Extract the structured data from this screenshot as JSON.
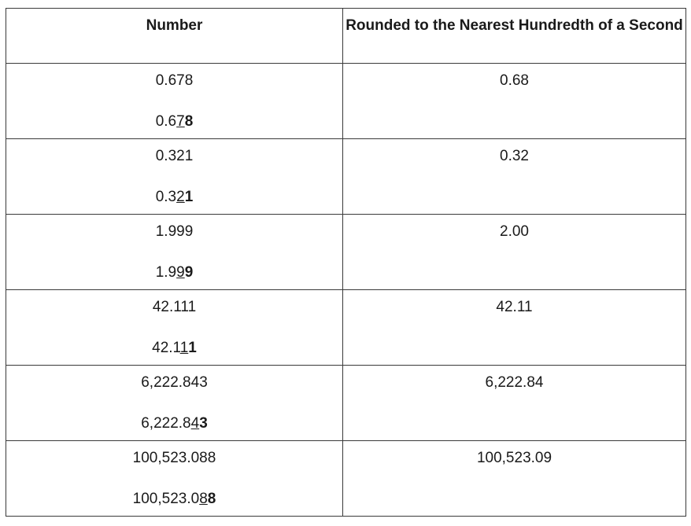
{
  "table": {
    "headers": [
      "Number",
      "Rounded to the Nearest Hundredth of a Second"
    ],
    "rows": [
      {
        "number": "0.678",
        "marked": {
          "before": "0.6",
          "underlined": "7",
          "bold": "8"
        },
        "rounded": "0.68"
      },
      {
        "number": "0.321",
        "marked": {
          "before": "0.3",
          "underlined": "2",
          "bold": "1"
        },
        "rounded": "0.32"
      },
      {
        "number": "1.999",
        "marked": {
          "before": "1.9",
          "underlined": "9",
          "bold": "9"
        },
        "rounded": "2.00"
      },
      {
        "number": "42.111",
        "marked": {
          "before": "42.1",
          "underlined": "1",
          "bold": "1"
        },
        "rounded": "42.11"
      },
      {
        "number": "6,222.843",
        "marked": {
          "before": "6,222.8",
          "underlined": "4",
          "bold": "3"
        },
        "rounded": "6,222.84"
      },
      {
        "number": "100,523.088",
        "marked": {
          "before": "100,523.0",
          "underlined": "8",
          "bold": "8"
        },
        "rounded": "100,523.09"
      }
    ]
  }
}
